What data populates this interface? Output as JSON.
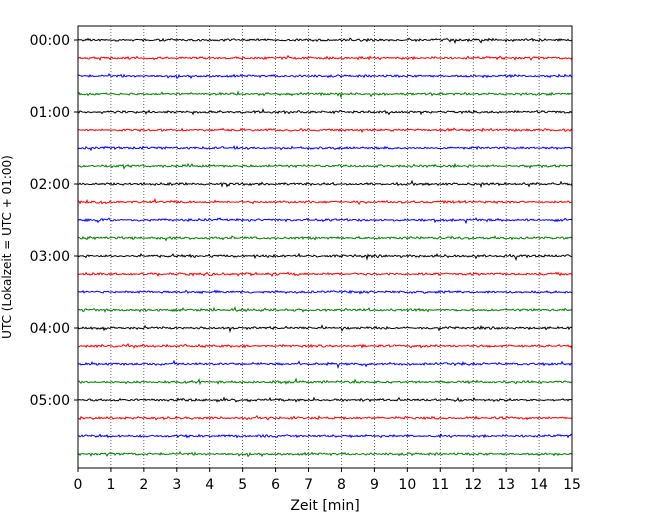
{
  "chart_data": {
    "type": "line",
    "title": "",
    "xlabel": "Zeit  [min]",
    "ylabel": "UTC (Lokalzeit = UTC + 01:00)",
    "xlim": [
      0,
      15
    ],
    "x_ticks": [
      "0",
      "1",
      "2",
      "3",
      "4",
      "5",
      "6",
      "7",
      "8",
      "9",
      "10",
      "11",
      "12",
      "13",
      "14",
      "15"
    ],
    "y_ticks": [
      "00:00",
      "01:00",
      "02:00",
      "03:00",
      "04:00",
      "05:00"
    ],
    "grid": "vertical dotted",
    "legend": "none",
    "trace_colors": [
      "#000000",
      "#ff0000",
      "#0000ff",
      "#008000"
    ],
    "traces": [
      {
        "start": "00:00",
        "color": "#000000"
      },
      {
        "start": "00:15",
        "color": "#ff0000"
      },
      {
        "start": "00:30",
        "color": "#0000ff"
      },
      {
        "start": "00:45",
        "color": "#008000"
      },
      {
        "start": "01:00",
        "color": "#000000"
      },
      {
        "start": "01:15",
        "color": "#ff0000"
      },
      {
        "start": "01:30",
        "color": "#0000ff"
      },
      {
        "start": "01:45",
        "color": "#008000"
      },
      {
        "start": "02:00",
        "color": "#000000"
      },
      {
        "start": "02:15",
        "color": "#ff0000"
      },
      {
        "start": "02:30",
        "color": "#0000ff"
      },
      {
        "start": "02:45",
        "color": "#008000"
      },
      {
        "start": "03:00",
        "color": "#000000"
      },
      {
        "start": "03:15",
        "color": "#ff0000"
      },
      {
        "start": "03:30",
        "color": "#0000ff"
      },
      {
        "start": "03:45",
        "color": "#008000"
      },
      {
        "start": "04:00",
        "color": "#000000"
      },
      {
        "start": "04:15",
        "color": "#ff0000"
      },
      {
        "start": "04:30",
        "color": "#0000ff"
      },
      {
        "start": "04:45",
        "color": "#008000"
      },
      {
        "start": "05:00",
        "color": "#000000"
      },
      {
        "start": "05:15",
        "color": "#ff0000"
      },
      {
        "start": "05:30",
        "color": "#0000ff"
      },
      {
        "start": "05:45",
        "color": "#008000"
      }
    ]
  }
}
